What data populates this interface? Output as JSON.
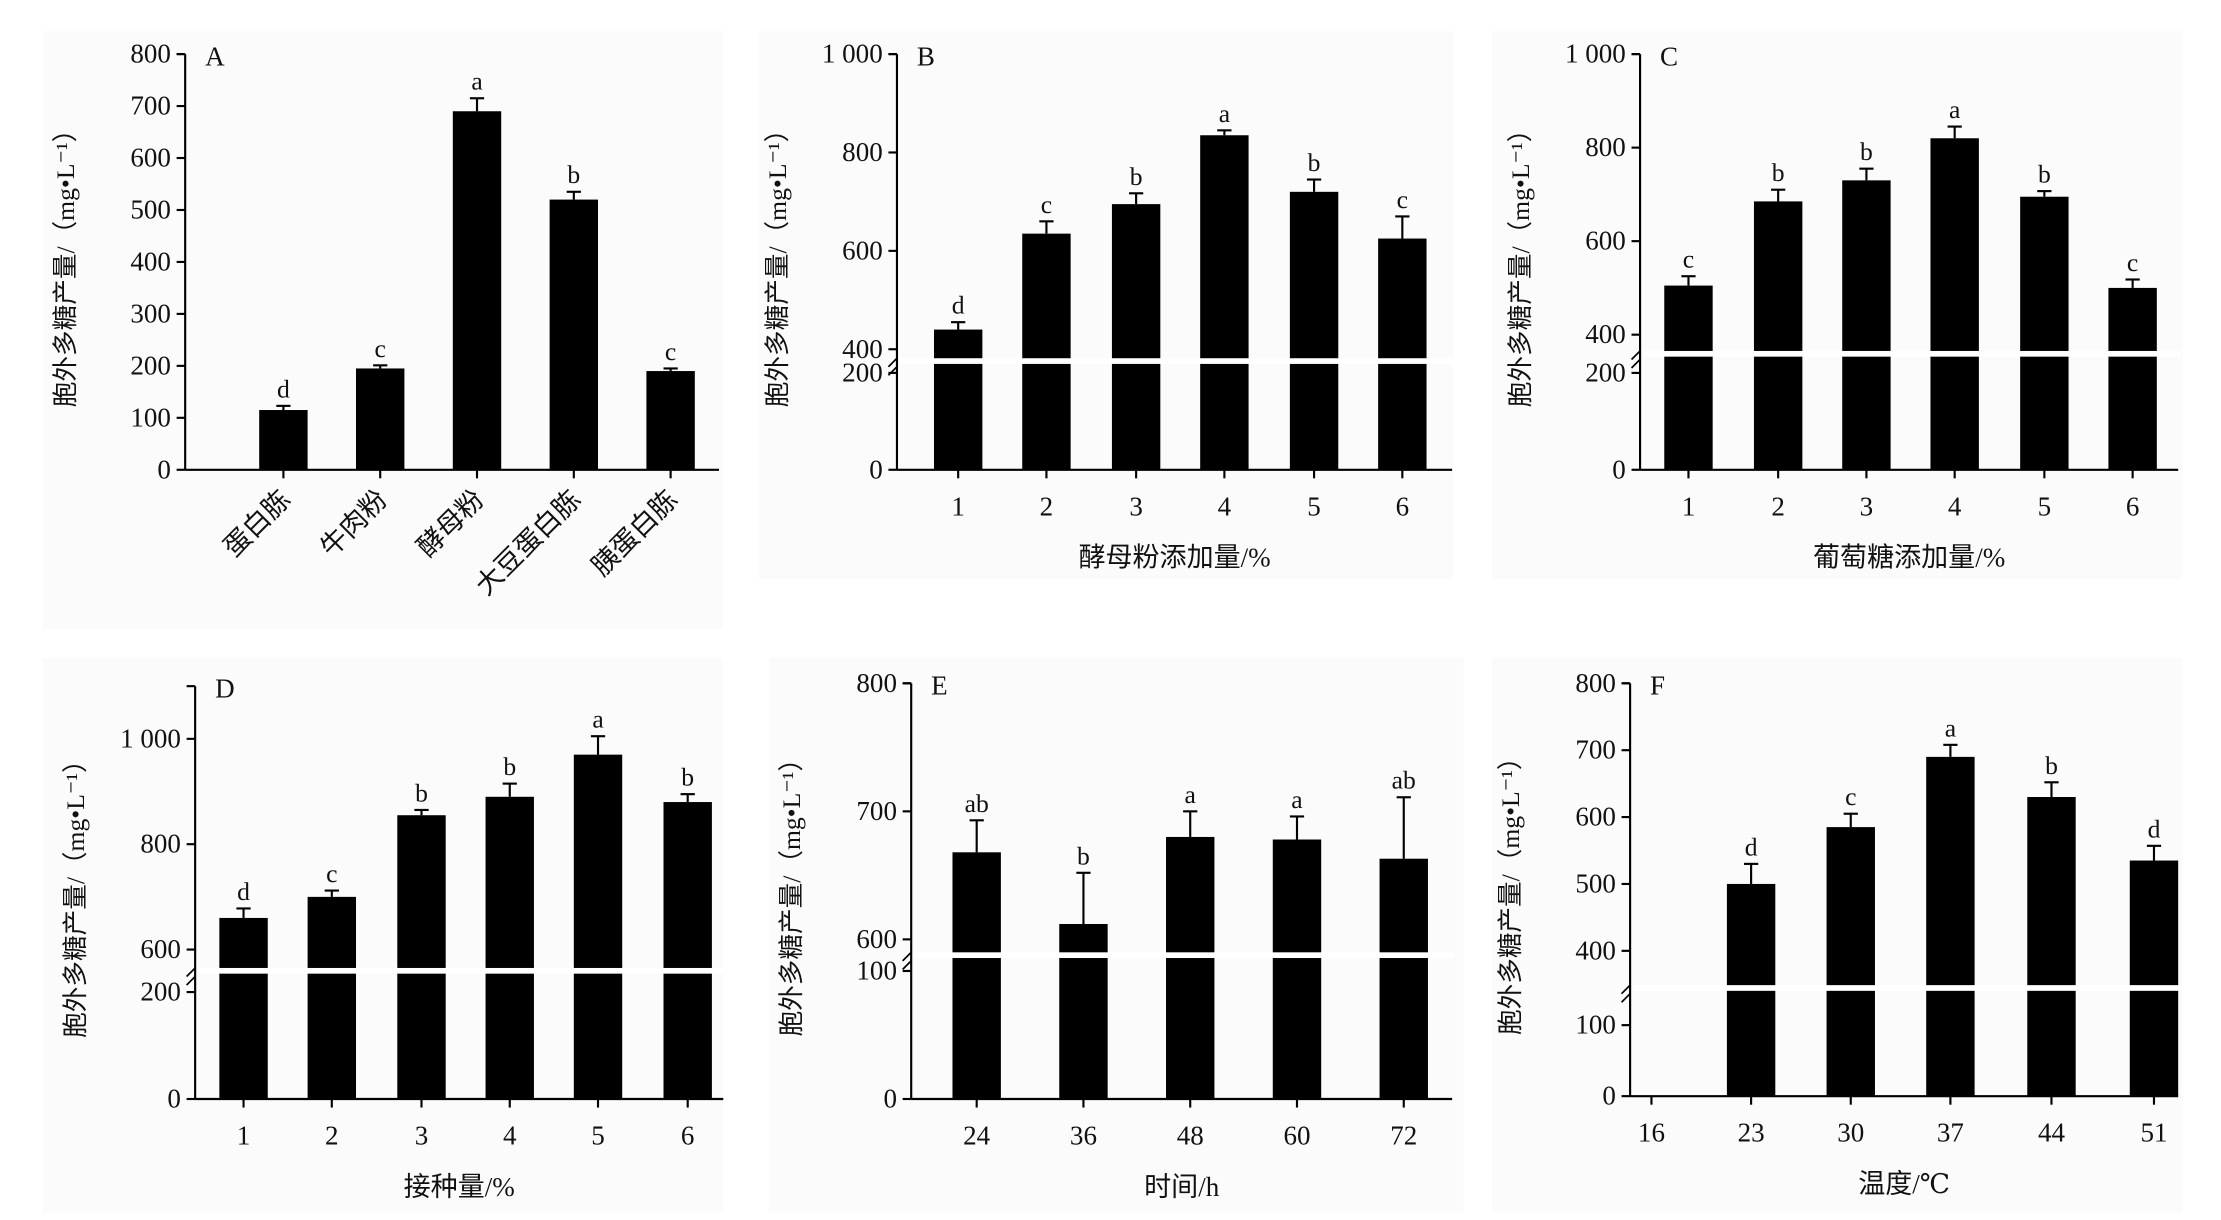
{
  "y_label": "胞外多糖产量/（mg•L⁻¹）",
  "chart_data": [
    {
      "type": "bar",
      "panel": "A",
      "xlabel": "",
      "categories": [
        "蛋白胨",
        "牛肉粉",
        "酵母粉",
        "大豆蛋白胨",
        "胰蛋白胨"
      ],
      "values": [
        115,
        195,
        690,
        520,
        190
      ],
      "errors": [
        8,
        6,
        25,
        15,
        5
      ],
      "letters": [
        "d",
        "c",
        "a",
        "b",
        "c"
      ],
      "yticks": [
        0,
        100,
        200,
        300,
        400,
        500,
        600,
        700,
        800
      ],
      "ytick_labels": [
        "0",
        "100",
        "200",
        "300",
        "400",
        "500",
        "600",
        "700",
        "800"
      ],
      "ylim": [
        0,
        800
      ],
      "axis_break": null
    },
    {
      "type": "bar",
      "panel": "B",
      "xlabel": "酵母粉添加量/%",
      "categories": [
        "1",
        "2",
        "3",
        "4",
        "5",
        "6"
      ],
      "values": [
        440,
        635,
        695,
        835,
        720,
        625
      ],
      "errors": [
        15,
        25,
        22,
        10,
        25,
        45
      ],
      "letters": [
        "d",
        "c",
        "b",
        "a",
        "b",
        "c"
      ],
      "yticks": [
        0,
        200,
        400,
        600,
        800,
        1000
      ],
      "ytick_labels": [
        "0",
        "200",
        "400",
        "600",
        "800",
        "1 000"
      ],
      "ylim": [
        0,
        1000
      ],
      "axis_break": [
        200,
        400
      ]
    },
    {
      "type": "bar",
      "panel": "C",
      "xlabel": "葡萄糖添加量/%",
      "categories": [
        "1",
        "2",
        "3",
        "4",
        "5",
        "6"
      ],
      "values": [
        505,
        685,
        730,
        820,
        695,
        500
      ],
      "errors": [
        20,
        25,
        25,
        25,
        12,
        18
      ],
      "letters": [
        "c",
        "b",
        "b",
        "a",
        "b",
        "c"
      ],
      "yticks": [
        0,
        200,
        400,
        600,
        800,
        1000
      ],
      "ytick_labels": [
        "0",
        "200",
        "400",
        "600",
        "800",
        "1 000"
      ],
      "ylim": [
        0,
        1000
      ],
      "axis_break": [
        200,
        400
      ]
    },
    {
      "type": "bar",
      "panel": "D",
      "xlabel": "接种量/%",
      "categories": [
        "1",
        "2",
        "3",
        "4",
        "5",
        "6"
      ],
      "values": [
        660,
        700,
        855,
        890,
        970,
        880
      ],
      "errors": [
        18,
        12,
        10,
        25,
        35,
        15
      ],
      "letters": [
        "d",
        "c",
        "b",
        "b",
        "a",
        "b"
      ],
      "yticks": [
        0,
        200,
        600,
        800,
        1000
      ],
      "ytick_labels": [
        "0",
        "200",
        "600",
        "800",
        "1 000"
      ],
      "ylim": [
        0,
        1100
      ],
      "axis_break": [
        200,
        600
      ]
    },
    {
      "type": "bar",
      "panel": "E",
      "xlabel": "时间/h",
      "categories": [
        "24",
        "36",
        "48",
        "60",
        "72"
      ],
      "values": [
        668,
        612,
        680,
        678,
        663
      ],
      "errors": [
        25,
        40,
        20,
        18,
        48
      ],
      "letters": [
        "ab",
        "b",
        "a",
        "a",
        "ab"
      ],
      "yticks": [
        0,
        100,
        600,
        700,
        800
      ],
      "ytick_labels": [
        "0",
        "100",
        "600",
        "700",
        "800"
      ],
      "ylim": [
        0,
        800
      ],
      "axis_break": [
        100,
        600
      ]
    },
    {
      "type": "bar",
      "panel": "F",
      "xlabel": "温度/℃",
      "categories": [
        "16",
        "23",
        "30",
        "37",
        "44",
        "51"
      ],
      "values": [
        null,
        500,
        585,
        690,
        630,
        535
      ],
      "errors": [
        null,
        30,
        20,
        18,
        22,
        22
      ],
      "letters": [
        "",
        "d",
        "c",
        "a",
        "b",
        "d"
      ],
      "yticks": [
        0,
        100,
        400,
        500,
        600,
        700,
        800
      ],
      "ytick_labels": [
        "0",
        "100",
        "400",
        "500",
        "600",
        "700",
        "800"
      ],
      "ylim": [
        0,
        800
      ],
      "axis_break": [
        100,
        400
      ]
    }
  ]
}
